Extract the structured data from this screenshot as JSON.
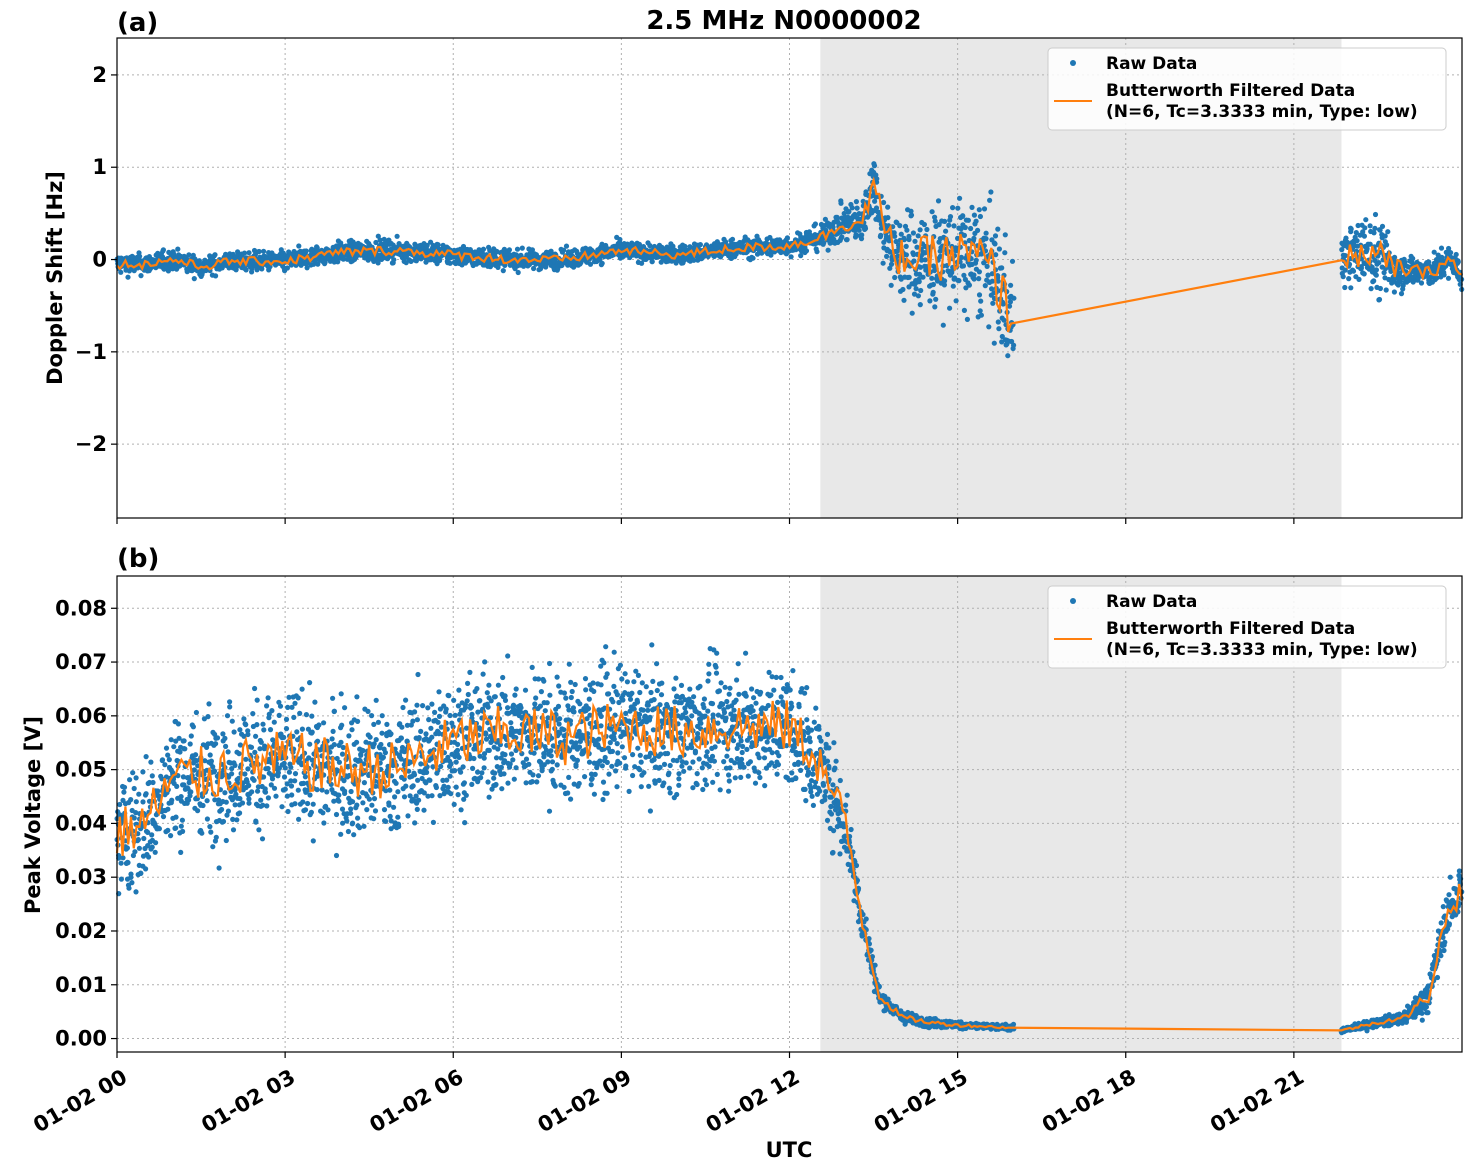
{
  "figure": {
    "title": "2.5 MHz N0000002",
    "xlabel": "UTC"
  },
  "colors": {
    "raw": "#1f77b4",
    "filtered": "#ff7f0e",
    "shade": "#e8e8e8",
    "grid": "#b0b0b0"
  },
  "chart_data": [
    {
      "type": "scatter",
      "panel": "(a)",
      "title": "2.5 MHz N0000002",
      "ylabel": "Doppler Shift [Hz]",
      "xlabel": "",
      "x_unit": "hours UTC on 01-02",
      "xlim": [
        0,
        24
      ],
      "ylim": [
        -2.8,
        2.4
      ],
      "yticks": [
        -2,
        -1,
        0,
        1,
        2
      ],
      "ytick_labels": [
        "−2",
        "−1",
        "0",
        "1",
        "2"
      ],
      "shaded_x": [
        12.55,
        21.85
      ],
      "data_gap_x": [
        16.0,
        21.85
      ],
      "grid": true,
      "legend_position": "top-right",
      "series": [
        {
          "name": "Raw Data",
          "kind": "scatter"
        },
        {
          "name": "Butterworth Filtered Data\n(N=6, Tc=3.3333 min, Type: low)",
          "kind": "line"
        }
      ],
      "legend": [
        "Raw Data",
        "Butterworth Filtered Data",
        "(N=6, Tc=3.3333 min, Type: low)"
      ],
      "filtered_trend": {
        "x": [
          0,
          0.5,
          1,
          1.5,
          2,
          3,
          4,
          5,
          6,
          7,
          8,
          9,
          10,
          11,
          12,
          12.6,
          13.0,
          13.3,
          13.5,
          13.7,
          13.9,
          14.3,
          15,
          15.5,
          16.0,
          21.85,
          22.3,
          22.8,
          23.4,
          23.8,
          24
        ],
        "y": [
          -0.05,
          -0.05,
          0.0,
          -0.08,
          -0.02,
          -0.02,
          0.08,
          0.1,
          0.05,
          0.0,
          0.0,
          0.1,
          0.05,
          0.12,
          0.15,
          0.25,
          0.4,
          0.4,
          0.85,
          0.3,
          0.05,
          0.0,
          0.05,
          0.0,
          -0.65,
          0.0,
          0.1,
          -0.1,
          -0.15,
          0.0,
          -0.2
        ]
      },
      "raw_spread": {
        "x": [
          0,
          2,
          4,
          6,
          8,
          10,
          12,
          12.6,
          13.3,
          13.6,
          14,
          15,
          16.0,
          21.85,
          22.5,
          23,
          24
        ],
        "half_width": [
          0.2,
          0.18,
          0.2,
          0.2,
          0.18,
          0.18,
          0.2,
          0.25,
          0.45,
          0.6,
          0.9,
          1.1,
          1.2,
          0.5,
          0.8,
          0.3,
          0.3
        ]
      }
    },
    {
      "type": "scatter",
      "panel": "(b)",
      "title": "",
      "ylabel": "Peak Voltage [V]",
      "xlabel": "UTC",
      "x_unit": "hours UTC on 01-02",
      "xlim": [
        0,
        24
      ],
      "ylim": [
        -0.0025,
        0.086
      ],
      "yticks": [
        0.0,
        0.01,
        0.02,
        0.03,
        0.04,
        0.05,
        0.06,
        0.07,
        0.08
      ],
      "ytick_labels": [
        "0.00",
        "0.01",
        "0.02",
        "0.03",
        "0.04",
        "0.05",
        "0.06",
        "0.07",
        "0.08"
      ],
      "xticks": [
        0,
        3,
        6,
        9,
        12,
        15,
        18,
        21
      ],
      "xtick_labels": [
        "01-02 00",
        "01-02 03",
        "01-02 06",
        "01-02 09",
        "01-02 12",
        "01-02 15",
        "01-02 18",
        "01-02 21"
      ],
      "shaded_x": [
        12.55,
        21.85
      ],
      "data_gap_x": [
        16.0,
        21.85
      ],
      "grid": true,
      "legend_position": "top-right",
      "series": [
        {
          "name": "Raw Data",
          "kind": "scatter"
        },
        {
          "name": "Butterworth Filtered Data\n(N=6, Tc=3.3333 min, Type: low)",
          "kind": "line"
        }
      ],
      "legend": [
        "Raw Data",
        "Butterworth Filtered Data",
        "(N=6, Tc=3.3333 min, Type: low)"
      ],
      "filtered_trend": {
        "x": [
          0,
          0.5,
          1,
          2,
          3,
          4,
          5,
          6,
          7,
          8,
          9,
          10,
          11,
          12,
          12.5,
          12.8,
          13.0,
          13.3,
          13.6,
          14,
          14.5,
          15,
          16.0,
          21.85,
          22.5,
          23,
          23.4,
          23.7,
          24
        ],
        "y": [
          0.038,
          0.04,
          0.048,
          0.05,
          0.052,
          0.05,
          0.05,
          0.055,
          0.057,
          0.056,
          0.058,
          0.057,
          0.058,
          0.058,
          0.052,
          0.045,
          0.04,
          0.022,
          0.008,
          0.004,
          0.003,
          0.0025,
          0.002,
          0.0015,
          0.003,
          0.004,
          0.008,
          0.022,
          0.028
        ]
      },
      "raw_spread": {
        "x": [
          0,
          2,
          4,
          6,
          8,
          10,
          12,
          12.5,
          12.8,
          13.0,
          13.3,
          13.6,
          14,
          15,
          16.0,
          21.85,
          22.5,
          23,
          23.4,
          24
        ],
        "half_width": [
          0.02,
          0.022,
          0.022,
          0.021,
          0.021,
          0.02,
          0.02,
          0.018,
          0.016,
          0.014,
          0.008,
          0.003,
          0.002,
          0.0012,
          0.0008,
          0.0008,
          0.0015,
          0.002,
          0.006,
          0.01
        ]
      }
    }
  ]
}
